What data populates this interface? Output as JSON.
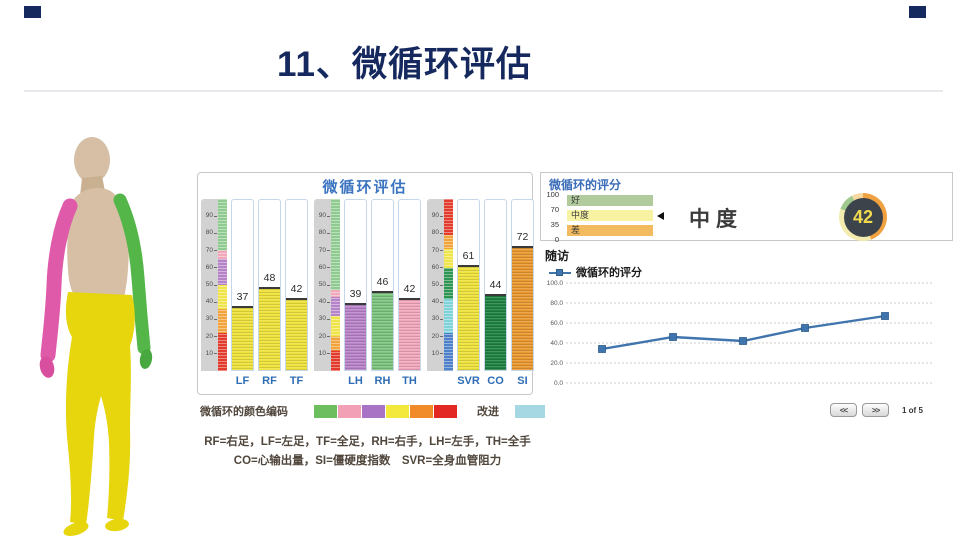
{
  "slide": {
    "title": "11、微循环评估",
    "accent_color": "#16295e"
  },
  "body_model": {
    "description": "3d-human-back-view",
    "region_colors": {
      "head_torso": "#d6bfa4",
      "left_arm": "#e05aaa",
      "right_arm": "#54b549",
      "lower_body": "#e7d50e"
    }
  },
  "bar_panel": {
    "title": "微循环评估",
    "axis_ticks": [
      90,
      80,
      70,
      60,
      50,
      40,
      30,
      20,
      10
    ],
    "groups": [
      {
        "scale": [
          {
            "color": "#8fca90",
            "from": 100,
            "to": 70
          },
          {
            "color": "#f2a8ba",
            "from": 70,
            "to": 65
          },
          {
            "color": "#b583c7",
            "from": 65,
            "to": 50
          },
          {
            "color": "#efe54a",
            "from": 50,
            "to": 36
          },
          {
            "color": "#f2a43c",
            "from": 36,
            "to": 22
          },
          {
            "color": "#e23a2c",
            "from": 22,
            "to": 0
          }
        ],
        "bars": [
          {
            "label": "LF",
            "value": 37,
            "color": "#efe23b"
          },
          {
            "label": "RF",
            "value": 48,
            "color": "#efe23b"
          },
          {
            "label": "TF",
            "value": 42,
            "color": "#efe23b"
          }
        ]
      },
      {
        "scale": [
          {
            "color": "#8fca90",
            "from": 100,
            "to": 47
          },
          {
            "color": "#f2a8ba",
            "from": 47,
            "to": 43
          },
          {
            "color": "#b583c7",
            "from": 43,
            "to": 32
          },
          {
            "color": "#efe54a",
            "from": 32,
            "to": 20
          },
          {
            "color": "#f2a43c",
            "from": 20,
            "to": 12
          },
          {
            "color": "#e23a2c",
            "from": 12,
            "to": 0
          }
        ],
        "bars": [
          {
            "label": "LH",
            "value": 39,
            "color": "#b983c9"
          },
          {
            "label": "RH",
            "value": 46,
            "color": "#7dc47f"
          },
          {
            "label": "TH",
            "value": 42,
            "color": "#f2a8bc"
          }
        ]
      },
      {
        "scale": [
          {
            "color": "#e23a2c",
            "from": 100,
            "to": 79
          },
          {
            "color": "#f2a43c",
            "from": 79,
            "to": 71
          },
          {
            "color": "#efe54a",
            "from": 71,
            "to": 60
          },
          {
            "color": "#2e9553",
            "from": 60,
            "to": 42
          },
          {
            "color": "#7fd2d8",
            "from": 42,
            "to": 22
          },
          {
            "color": "#4f81c9",
            "from": 22,
            "to": 0
          }
        ],
        "bars": [
          {
            "label": "SVR",
            "value": 61,
            "color": "#efe23b"
          },
          {
            "label": "CO",
            "value": 44,
            "color": "#1f8242"
          },
          {
            "label": "SI",
            "value": 72,
            "color": "#e9992f"
          }
        ]
      }
    ]
  },
  "color_legend": {
    "label": "微循环的颜色编码",
    "swatches": [
      "#6dbe5f",
      "#f2a0b5",
      "#a873c5",
      "#f3e93c",
      "#f18a28",
      "#e32722"
    ],
    "improved_label": "改进",
    "improved_color": "#a6d8e4"
  },
  "footnotes": [
    "RF=右足，LF=左足，TF=全足，RH=右手，LH=左手，TH=全手",
    "CO=心输出量，SI=僵硬度指数　SVR=全身血管阻力"
  ],
  "score_panel": {
    "title": "微循环的评分",
    "scale_ticks": [
      "100",
      "70",
      "35",
      "0"
    ],
    "bands": [
      {
        "label": "好",
        "color": "#b2cb9c",
        "marker": false
      },
      {
        "label": "中度",
        "color": "#f7f3a3",
        "marker": true
      },
      {
        "label": "差",
        "color": "#f3bb60",
        "marker": false
      }
    ],
    "rating_text": "中度",
    "score": "42"
  },
  "followup": {
    "title": "随访",
    "legend": "微循环的评分",
    "pager": {
      "prev": "<<",
      "next": ">>",
      "status": "1 of 5"
    }
  },
  "chart_data": [
    {
      "type": "bar",
      "title": "微循环评估",
      "categories": [
        "LF",
        "RF",
        "TF",
        "LH",
        "RH",
        "TH",
        "SVR",
        "CO",
        "SI"
      ],
      "values": [
        37,
        48,
        42,
        39,
        46,
        42,
        61,
        44,
        72
      ],
      "ylim": [
        0,
        100
      ],
      "ytick_step": 10,
      "layout": "three groups (feet / hands / systemic), each with its own color-banded reference scale"
    },
    {
      "type": "line",
      "title": "随访",
      "series": [
        {
          "name": "微循环的评分",
          "values": [
            34,
            46,
            42,
            55,
            67
          ]
        }
      ],
      "yticks": [
        "100.0",
        "80.0",
        "60.0",
        "40.0",
        "20.0",
        "0.0"
      ],
      "ylim": [
        0,
        100
      ],
      "grid": "dashed horizontal",
      "legend_position": "top-left",
      "line_color": "#3f74ad"
    }
  ]
}
